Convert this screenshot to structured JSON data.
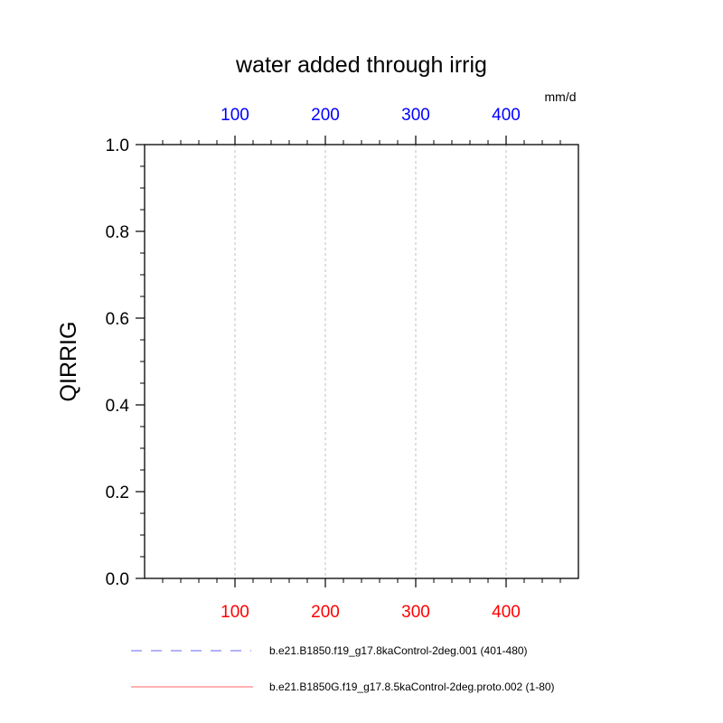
{
  "chart_data": {
    "type": "line",
    "title": "water added through irrig",
    "ylabel": "QIRRIG",
    "units": "mm/d",
    "xlim": [
      0,
      480
    ],
    "ylim": [
      0.0,
      1.0
    ],
    "x_ticks_bottom": [
      "100",
      "200",
      "300",
      "400"
    ],
    "x_ticks_top": [
      "100",
      "200",
      "300",
      "400"
    ],
    "x_tick_values": [
      100,
      200,
      300,
      400
    ],
    "y_ticks": [
      "0.0",
      "0.2",
      "0.4",
      "0.6",
      "0.8",
      "1.0"
    ],
    "y_tick_values": [
      0.0,
      0.2,
      0.4,
      0.6,
      0.8,
      1.0
    ],
    "grid": "vertical dashed at major x ticks",
    "series": [
      {
        "name": "b.e21.B1850.f19_g17.8kaControl-2deg.001 (401-480)",
        "color": "#0000ff",
        "style": "dashed",
        "axis": "top",
        "x": [],
        "values": []
      },
      {
        "name": "b.e21.B1850G.f19_g17.8.5kaControl-2deg.proto.002 (1-80)",
        "color": "#ff0000",
        "style": "solid",
        "axis": "bottom",
        "x": [],
        "values": []
      }
    ],
    "top_axis_color": "#0000ff",
    "bottom_axis_color": "#ff0000"
  }
}
